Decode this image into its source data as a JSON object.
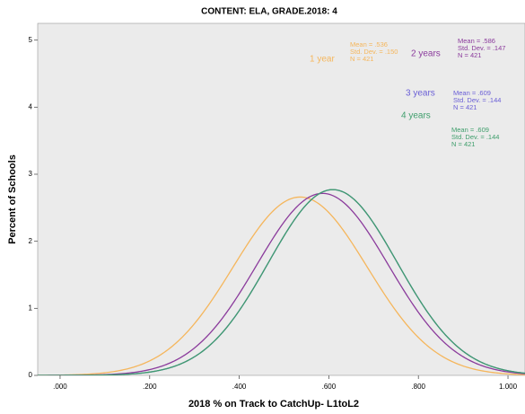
{
  "chart_data": {
    "type": "normal-curves",
    "title": "CONTENT: ELA, GRADE.2018: 4",
    "x_label": "2018 % on Track to CatchUp- L1toL2",
    "y_label": "Percent of Schools",
    "xlim": [
      -0.05,
      1.038
    ],
    "ylim": [
      0,
      5.25
    ],
    "xticks": [
      {
        "value": 0,
        "label": ".000"
      },
      {
        "value": 0.2,
        "label": ".200"
      },
      {
        "value": 0.4,
        "label": ".400"
      },
      {
        "value": 0.6,
        "label": ".600"
      },
      {
        "value": 0.8,
        "label": ".800"
      },
      {
        "value": 1.0,
        "label": "1.000"
      }
    ],
    "yticks": [
      0,
      1,
      2,
      3,
      4,
      5
    ],
    "series": [
      {
        "name": "1 year",
        "color": "#f5b65c",
        "mean": 0.536,
        "sd": 0.15,
        "stats": [
          "Mean = .536",
          "Std. Dev. = .150",
          "N = 421"
        ]
      },
      {
        "name": "2 years",
        "color": "#8b3b9c",
        "mean": 0.586,
        "sd": 0.147,
        "stats": [
          "Mean = .586",
          "Std. Dev. = .147",
          "N = 421"
        ]
      },
      {
        "name": "3 years",
        "color": "#6a5fd6",
        "mean": 0.609,
        "sd": 0.144,
        "stats": [
          "Mean = .609",
          "Std. Dev. = .144",
          "N = 421"
        ]
      },
      {
        "name": "4 years",
        "color": "#3f9e6c",
        "mean": 0.609,
        "sd": 0.144,
        "stats": [
          "Mean = .609",
          "Std. Dev. = .144",
          "N = 421"
        ]
      }
    ]
  }
}
